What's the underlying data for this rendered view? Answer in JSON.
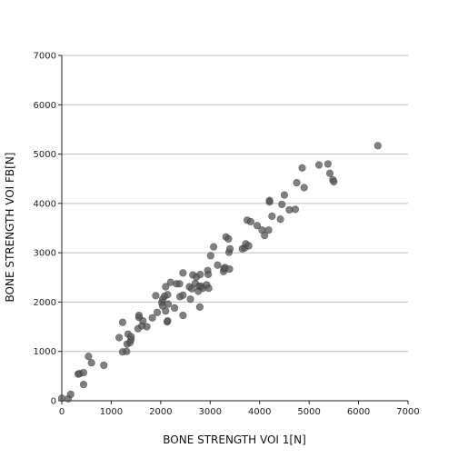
{
  "chart_data": {
    "type": "scatter",
    "xlabel": "BONE STRENGTH VOI 1[N]",
    "ylabel": "BONE STRENGTH VOI FB[N]",
    "xlim": [
      0,
      7000
    ],
    "ylim": [
      0,
      7000
    ],
    "xticks": [
      0,
      1000,
      2000,
      3000,
      4000,
      5000,
      6000,
      7000
    ],
    "yticks": [
      0,
      1000,
      2000,
      3000,
      4000,
      5000,
      6000,
      7000
    ],
    "grid": "horizontal",
    "marker_color": "#555555",
    "points": [
      [
        0,
        50
      ],
      [
        130,
        40
      ],
      [
        180,
        130
      ],
      [
        330,
        540
      ],
      [
        360,
        550
      ],
      [
        440,
        330
      ],
      [
        440,
        570
      ],
      [
        540,
        900
      ],
      [
        600,
        770
      ],
      [
        850,
        720
      ],
      [
        1160,
        1280
      ],
      [
        1230,
        990
      ],
      [
        1230,
        1590
      ],
      [
        1310,
        1000
      ],
      [
        1320,
        1150
      ],
      [
        1340,
        1350
      ],
      [
        1380,
        1180
      ],
      [
        1400,
        1240
      ],
      [
        1400,
        1300
      ],
      [
        1540,
        1460
      ],
      [
        1560,
        1690
      ],
      [
        1560,
        1730
      ],
      [
        1620,
        1520
      ],
      [
        1640,
        1620
      ],
      [
        1720,
        1500
      ],
      [
        1830,
        1680
      ],
      [
        1900,
        2130
      ],
      [
        1930,
        1790
      ],
      [
        2020,
        1990
      ],
      [
        2040,
        1920
      ],
      [
        2040,
        2060
      ],
      [
        2080,
        2120
      ],
      [
        2100,
        1820
      ],
      [
        2100,
        2310
      ],
      [
        2130,
        1600
      ],
      [
        2140,
        1620
      ],
      [
        2140,
        2150
      ],
      [
        2150,
        1960
      ],
      [
        2200,
        2400
      ],
      [
        2280,
        1880
      ],
      [
        2320,
        2370
      ],
      [
        2380,
        2370
      ],
      [
        2390,
        2110
      ],
      [
        2450,
        2590
      ],
      [
        2450,
        2140
      ],
      [
        2450,
        1730
      ],
      [
        2580,
        2310
      ],
      [
        2600,
        2060
      ],
      [
        2630,
        2270
      ],
      [
        2650,
        2550
      ],
      [
        2700,
        2380
      ],
      [
        2720,
        2510
      ],
      [
        2760,
        2220
      ],
      [
        2780,
        2320
      ],
      [
        2790,
        1900
      ],
      [
        2800,
        2560
      ],
      [
        2820,
        2320
      ],
      [
        2850,
        2280
      ],
      [
        2930,
        2350
      ],
      [
        2950,
        2640
      ],
      [
        2960,
        2560
      ],
      [
        2970,
        2280
      ],
      [
        3010,
        2940
      ],
      [
        3070,
        3120
      ],
      [
        3150,
        2750
      ],
      [
        3270,
        2620
      ],
      [
        3280,
        2680
      ],
      [
        3300,
        2700
      ],
      [
        3320,
        3320
      ],
      [
        3370,
        3280
      ],
      [
        3380,
        3010
      ],
      [
        3390,
        2670
      ],
      [
        3400,
        3080
      ],
      [
        3650,
        3080
      ],
      [
        3700,
        3100
      ],
      [
        3720,
        3180
      ],
      [
        3750,
        3660
      ],
      [
        3780,
        3140
      ],
      [
        3820,
        3630
      ],
      [
        3950,
        3550
      ],
      [
        4050,
        3460
      ],
      [
        4100,
        3350
      ],
      [
        4180,
        3460
      ],
      [
        4200,
        4030
      ],
      [
        4200,
        4060
      ],
      [
        4250,
        3740
      ],
      [
        4420,
        3680
      ],
      [
        4450,
        3980
      ],
      [
        4500,
        4170
      ],
      [
        4600,
        3870
      ],
      [
        4720,
        3880
      ],
      [
        4750,
        4420
      ],
      [
        4860,
        4720
      ],
      [
        4900,
        4320
      ],
      [
        5200,
        4780
      ],
      [
        5380,
        4800
      ],
      [
        5420,
        4610
      ],
      [
        5480,
        4480
      ],
      [
        5500,
        4440
      ],
      [
        6390,
        5170
      ]
    ]
  }
}
